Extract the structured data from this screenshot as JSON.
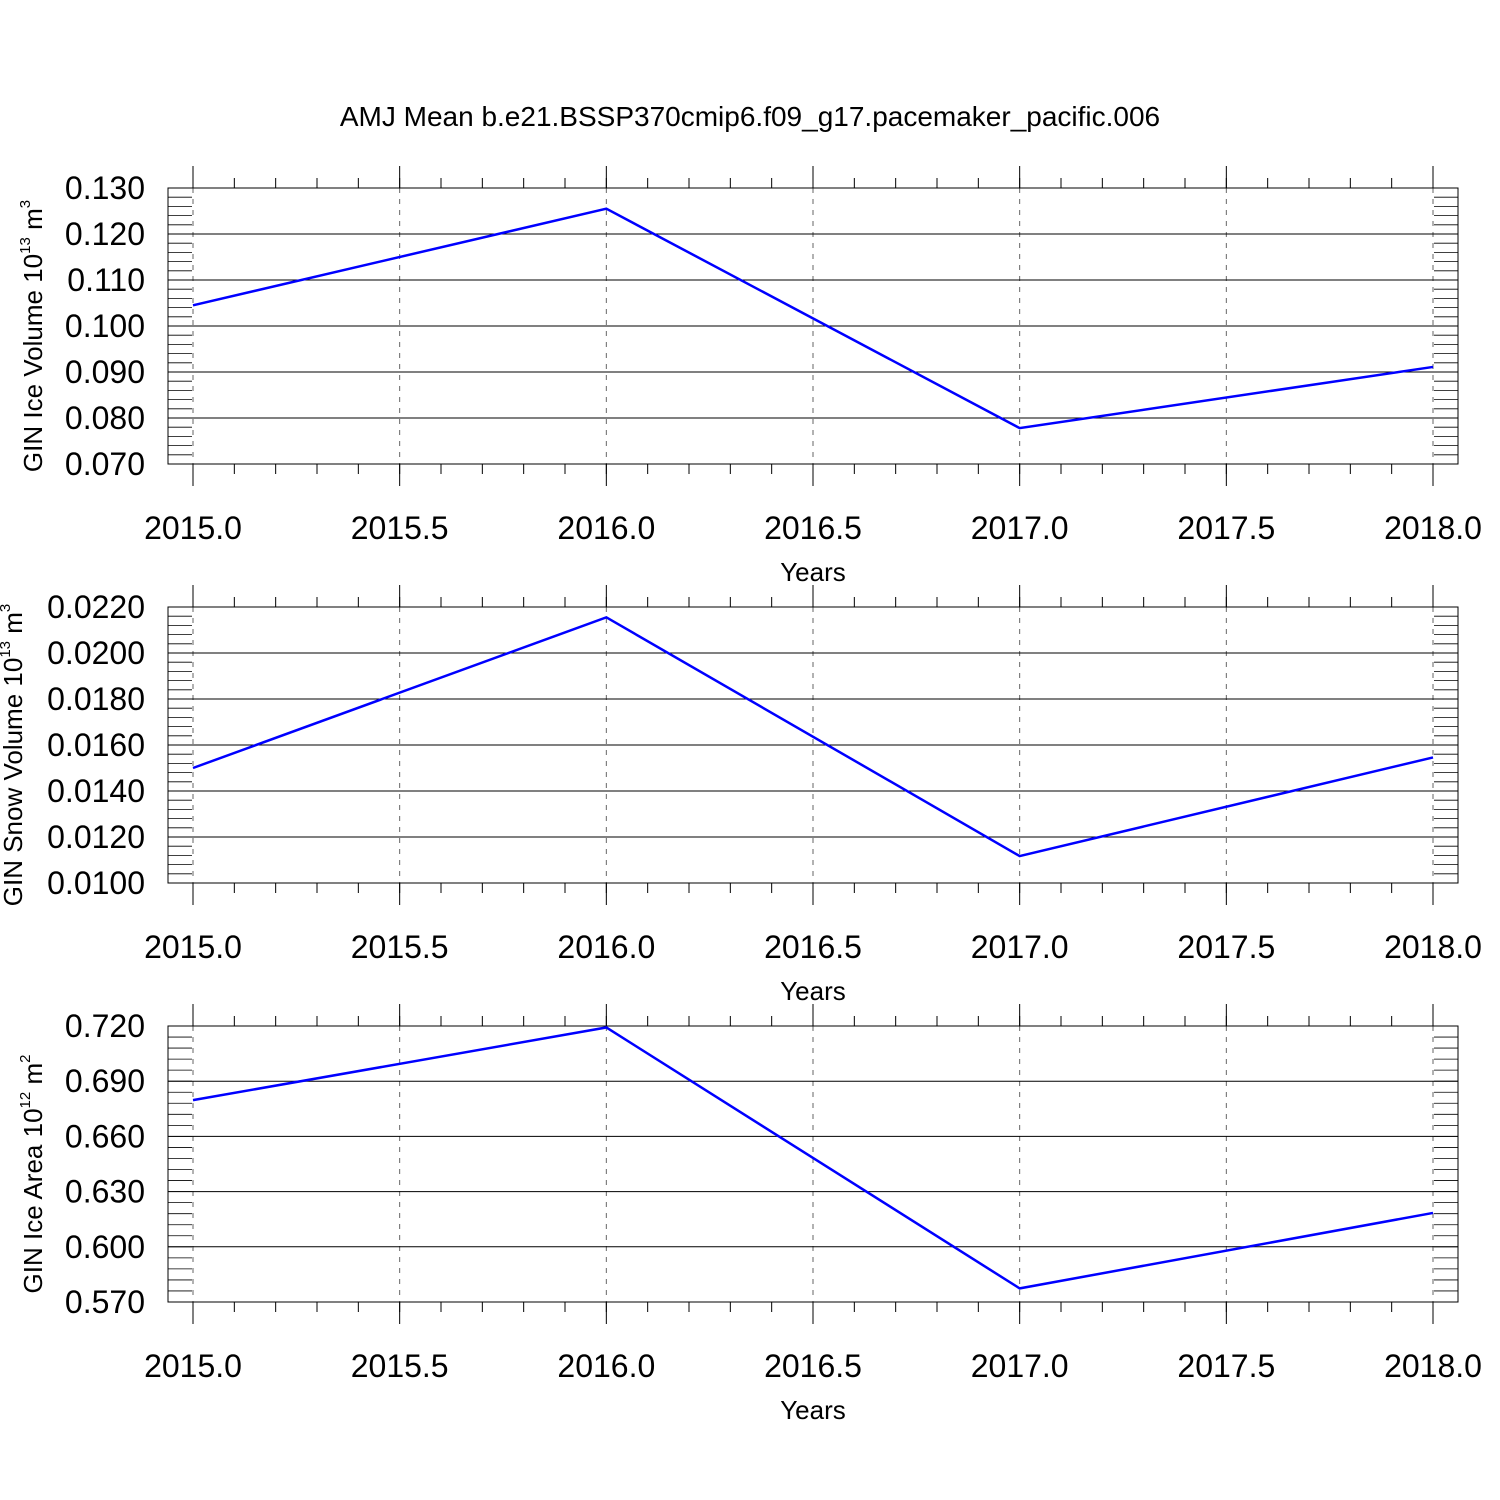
{
  "chart_data": {
    "title": "AMJ Mean b.e21.BSSP370cmip6.f09_g17.pacemaker_pacific.006",
    "line_color": "#0000ff",
    "panels": [
      {
        "type": "line",
        "xlabel": "Years",
        "ylabel": {
          "text": "GIN Ice Volume 10",
          "exp": "13",
          "unit": " m",
          "unit_exp": "3"
        },
        "xlim": [
          2015.0,
          2018.0
        ],
        "xticks": [
          "2015.0",
          "2015.5",
          "2016.0",
          "2016.5",
          "2017.0",
          "2017.5",
          "2018.0"
        ],
        "ylim": [
          0.07,
          0.13
        ],
        "yticks": [
          "0.070",
          "0.080",
          "0.090",
          "0.100",
          "0.110",
          "0.120",
          "0.130"
        ],
        "x": [
          2015,
          2016,
          2017,
          2018
        ],
        "y": [
          0.1045,
          0.1255,
          0.0778,
          0.0911
        ]
      },
      {
        "type": "line",
        "xlabel": "Years",
        "ylabel": {
          "text": "GIN Snow Volume 10",
          "exp": "13",
          "unit": " m",
          "unit_exp": "3"
        },
        "xlim": [
          2015.0,
          2018.0
        ],
        "xticks": [
          "2015.0",
          "2015.5",
          "2016.0",
          "2016.5",
          "2017.0",
          "2017.5",
          "2018.0"
        ],
        "ylim": [
          0.01,
          0.022
        ],
        "yticks": [
          "0.0100",
          "0.0120",
          "0.0140",
          "0.0160",
          "0.0180",
          "0.0200",
          "0.0220"
        ],
        "x": [
          2015,
          2016,
          2017,
          2018
        ],
        "y": [
          0.015,
          0.02155,
          0.01117,
          0.01546
        ]
      },
      {
        "type": "line",
        "xlabel": "Years",
        "ylabel": {
          "text": "GIN Ice Area 10",
          "exp": "12",
          "unit": " m",
          "unit_exp": "2"
        },
        "xlim": [
          2015.0,
          2018.0
        ],
        "xticks": [
          "2015.0",
          "2015.5",
          "2016.0",
          "2016.5",
          "2017.0",
          "2017.5",
          "2018.0"
        ],
        "ylim": [
          0.57,
          0.72
        ],
        "yticks": [
          "0.570",
          "0.600",
          "0.630",
          "0.660",
          "0.690",
          "0.720"
        ],
        "x": [
          2015,
          2016,
          2017,
          2018
        ],
        "y": [
          0.6797,
          0.7192,
          0.5774,
          0.6184
        ]
      }
    ]
  }
}
